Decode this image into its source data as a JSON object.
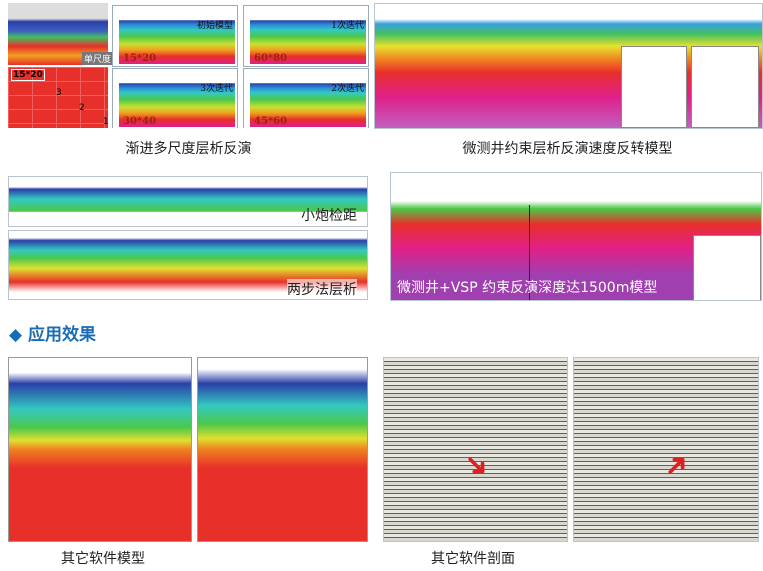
{
  "top_left": {
    "caption": "渐进多尺度层析反演",
    "single_scale_label": "单尺度",
    "grid_label": "15*20",
    "grid_numbers": [
      "3",
      "2",
      "1"
    ],
    "sub_panels": [
      {
        "title": "初始模型",
        "grid": "15*20"
      },
      {
        "title": "1次迭代",
        "grid": "60*80"
      },
      {
        "title": "3次迭代",
        "grid": "30*40"
      },
      {
        "title": "2次迭代",
        "grid": "45*60"
      }
    ]
  },
  "top_right": {
    "caption": "微测井约束层析反演速度反转模型"
  },
  "mid_left": {
    "panels": [
      {
        "label": "小炮检距"
      },
      {
        "label": "两步法层析"
      }
    ]
  },
  "mid_right": {
    "label": "微测井+VSP 约束反演深度达1500m模型"
  },
  "section_heading": "应用效果",
  "bottom": {
    "model_caption": "其它软件模型",
    "section_caption": "其它软件剖面"
  },
  "colors": {
    "heading": "#1a6db5"
  }
}
